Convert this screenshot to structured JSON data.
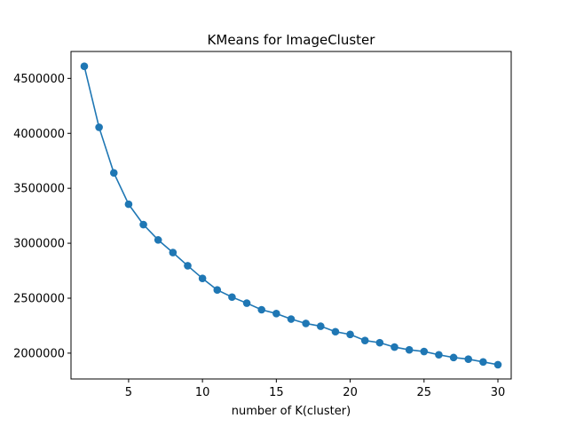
{
  "chart_data": {
    "type": "line",
    "title": "KMeans for ImageCluster",
    "xlabel": "number of K(cluster)",
    "ylabel": "",
    "xlim": [
      1.1,
      30.9
    ],
    "ylim": [
      1765000,
      4745000
    ],
    "xticks": [
      5,
      10,
      15,
      20,
      25,
      30
    ],
    "yticks": [
      2000000,
      2500000,
      3000000,
      3500000,
      4000000,
      4500000
    ],
    "xtick_labels": [
      "5",
      "10",
      "15",
      "20",
      "25",
      "30"
    ],
    "ytick_labels": [
      "2000000",
      "2500000",
      "3000000",
      "3500000",
      "4000000",
      "4500000"
    ],
    "grid": false,
    "marker": "circle",
    "series": [
      {
        "color": "#1f77b4",
        "x": [
          2,
          3,
          4,
          5,
          6,
          7,
          8,
          9,
          10,
          11,
          12,
          13,
          14,
          15,
          16,
          17,
          18,
          19,
          20,
          21,
          22,
          23,
          24,
          25,
          26,
          27,
          28,
          29,
          30
        ],
        "y": [
          4610000,
          4055000,
          3640000,
          3355000,
          3170000,
          3030000,
          2915000,
          2795000,
          2680000,
          2575000,
          2510000,
          2455000,
          2395000,
          2360000,
          2310000,
          2270000,
          2245000,
          2195000,
          2170000,
          2115000,
          2095000,
          2055000,
          2030000,
          2015000,
          1985000,
          1960000,
          1945000,
          1920000,
          1895000
        ]
      }
    ]
  }
}
